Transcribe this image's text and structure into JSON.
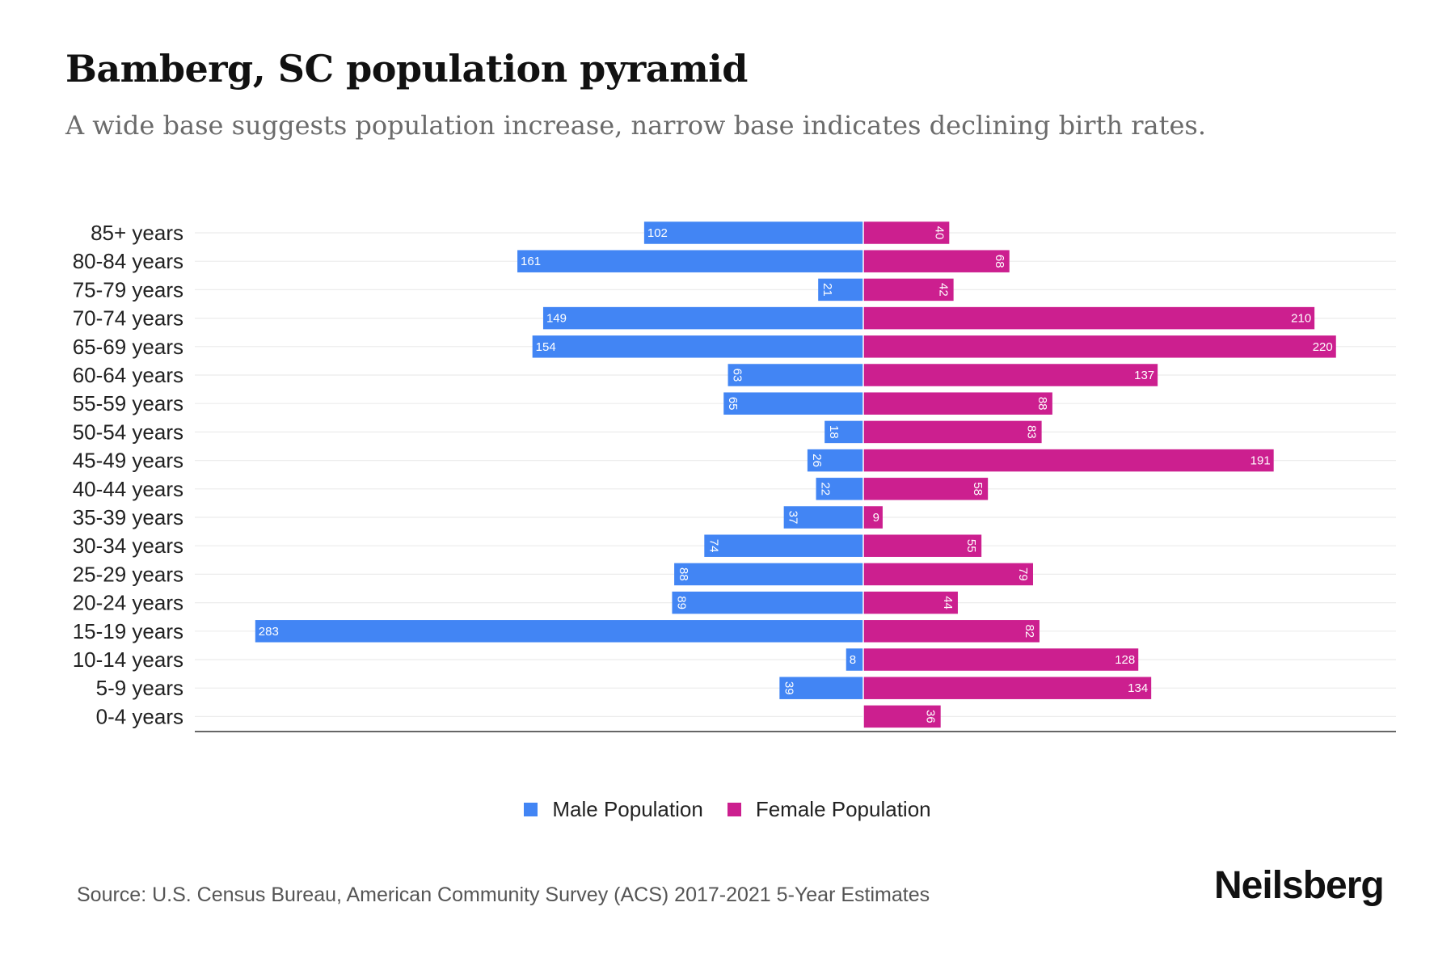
{
  "chart_data": {
    "type": "bar",
    "orientation": "horizontal-pyramid",
    "title": "Bamberg, SC population pyramid",
    "subtitle": "A wide base suggests population increase, narrow base indicates declining birth rates.",
    "categories": [
      "85+ years",
      "80-84 years",
      "75-79 years",
      "70-74 years",
      "65-69 years",
      "60-64 years",
      "55-59 years",
      "50-54 years",
      "45-49 years",
      "40-44 years",
      "35-39 years",
      "30-34 years",
      "25-29 years",
      "20-24 years",
      "15-19 years",
      "10-14 years",
      "5-9 years",
      "0-4 years"
    ],
    "series": [
      {
        "name": "Male Population",
        "color": "#4285f4",
        "values": [
          102,
          161,
          21,
          149,
          154,
          63,
          65,
          18,
          26,
          22,
          37,
          74,
          88,
          89,
          283,
          8,
          39,
          0
        ]
      },
      {
        "name": "Female Population",
        "color": "#cc1f8f",
        "values": [
          40,
          68,
          42,
          210,
          220,
          137,
          88,
          83,
          191,
          58,
          9,
          55,
          79,
          44,
          82,
          128,
          134,
          36
        ]
      }
    ],
    "xlim": [
      -283,
      283
    ],
    "grid": true,
    "legend_position": "bottom"
  },
  "source": "Source: U.S. Census Bureau, American Community Survey (ACS) 2017-2021 5-Year Estimates",
  "logo": "Neilsberg"
}
